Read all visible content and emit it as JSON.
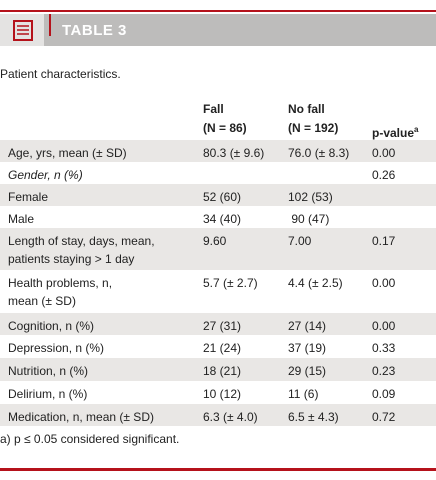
{
  "header": {
    "title": "TABLE 3"
  },
  "caption": "Patient characteristics.",
  "table": {
    "columns": [
      {
        "name": "Fall",
        "n": "(N = 86)"
      },
      {
        "name": "No fall",
        "n": "(N = 192)"
      },
      {
        "name": "p-value",
        "sup": "a"
      }
    ],
    "rows": [
      {
        "label": [
          "Age, yrs, mean (± SD)"
        ],
        "fall": "80.3 (± 9.6)",
        "no_fall": "76.0 (± 8.3)",
        "p": "0.00"
      },
      {
        "label": [
          "Gender, n (%)"
        ],
        "italic": true,
        "p": "0.26"
      },
      {
        "label": [
          "Female"
        ],
        "fall": "52 (60)",
        "no_fall": "102 (53)"
      },
      {
        "label": [
          "Male"
        ],
        "fall": "34 (40)",
        "no_fall": " 90 (47)"
      },
      {
        "label": [
          "Length of stay, days, mean,",
          "patients staying > 1 day"
        ],
        "fall": "9.60",
        "no_fall": "7.00",
        "p": "0.17"
      },
      {
        "label": [
          "Health problems, n,",
          "mean (± SD)"
        ],
        "fall": "5.7 (± 2.7)",
        "no_fall": "4.4 (± 2.5)",
        "p": "0.00"
      },
      {
        "label": [
          "Cognition, n (%)"
        ],
        "fall": "27 (31)",
        "no_fall": "27 (14)",
        "p": "0.00"
      },
      {
        "label": [
          "Depression, n (%)"
        ],
        "fall": "21 (24)",
        "no_fall": "37 (19)",
        "p": "0.33"
      },
      {
        "label": [
          "Nutrition, n (%)"
        ],
        "fall": "18 (21)",
        "no_fall": "29 (15)",
        "p": "0.23"
      },
      {
        "label": [
          "Delirium, n (%)"
        ],
        "fall": "10 (12)",
        "no_fall": "11 (6)",
        "p": "0.09"
      },
      {
        "label": [
          "Medication, n, mean (± SD)"
        ],
        "fall": "6.3 (± 4.0)",
        "no_fall": "6.5 ± 4.3)",
        "p": "0.72"
      }
    ]
  },
  "footnote": "a) p ≤ 0.05 considered significant."
}
